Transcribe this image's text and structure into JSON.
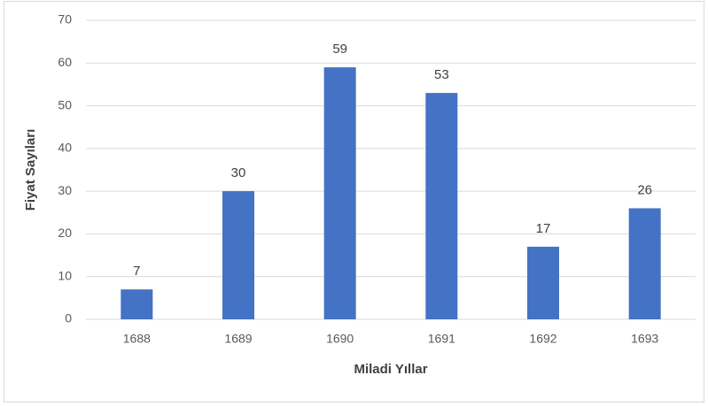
{
  "chart_data": {
    "type": "bar",
    "x_label": "Miladi Yıllar",
    "y_label": "Fiyat Sayıları",
    "categories": [
      "1688",
      "1689",
      "1690",
      "1691",
      "1692",
      "1693"
    ],
    "values": [
      7,
      30,
      59,
      53,
      17,
      26
    ],
    "color": "#4472c4",
    "ylim": [
      0,
      70
    ],
    "yticks": [
      0,
      10,
      20,
      30,
      40,
      50,
      60,
      70
    ],
    "grid": true
  }
}
